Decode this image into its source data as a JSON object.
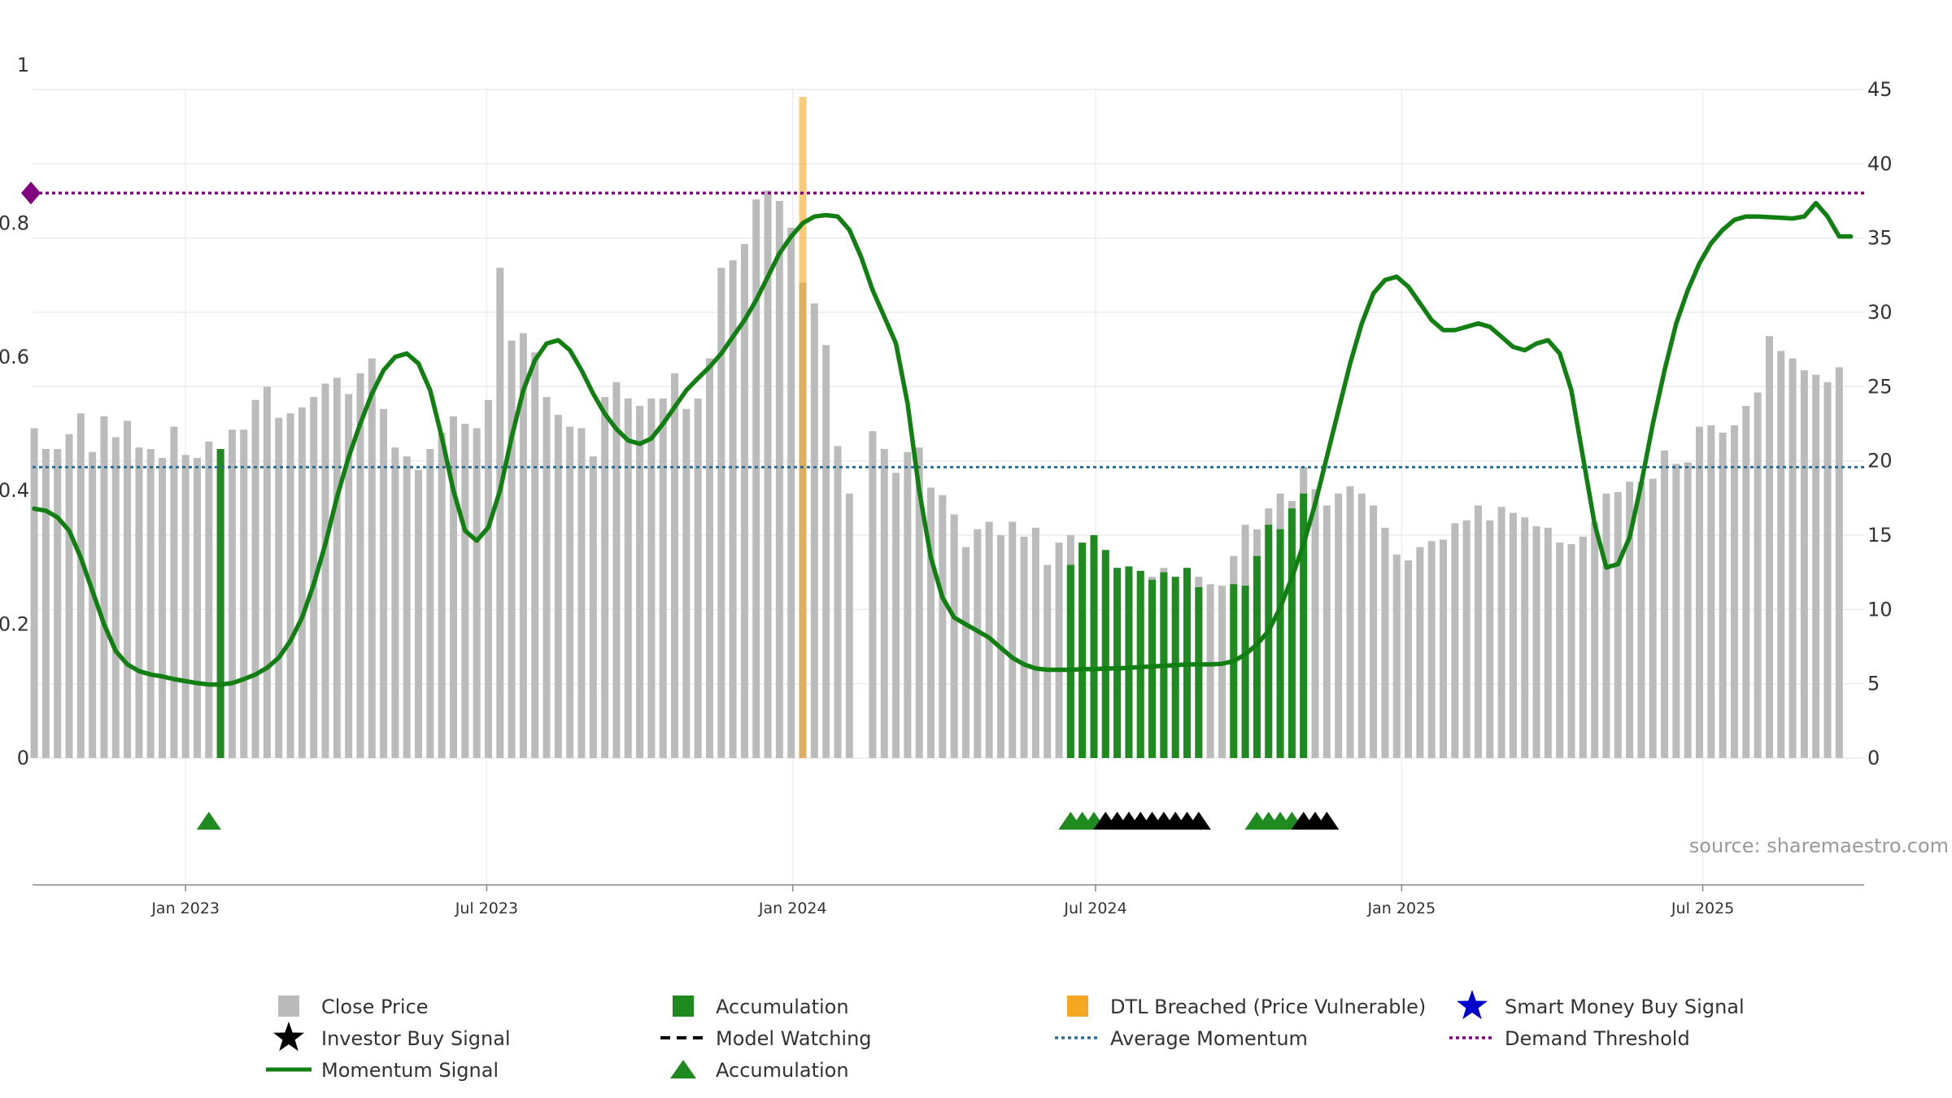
{
  "chart_data": {
    "type": "bar",
    "title": "",
    "source": "source: sharemaestro.com",
    "left_axis": {
      "ylim": [
        0,
        1
      ],
      "ticks": [
        "0",
        "0.2",
        "0.4",
        "0.6",
        "0.8",
        "1"
      ],
      "tick_values": [
        0,
        0.2,
        0.4,
        0.6,
        0.8,
        1
      ]
    },
    "right_axis": {
      "ylim": [
        0,
        45
      ],
      "ticks": [
        "0",
        "5",
        "10",
        "15",
        "20",
        "25",
        "30",
        "35",
        "40",
        "45"
      ],
      "tick_values": [
        0,
        5,
        10,
        15,
        20,
        25,
        30,
        35,
        40,
        45
      ]
    },
    "x_axis": {
      "start": "2022-10-01",
      "end": "2025-10-06",
      "ticks": [
        {
          "date": "2023-01-01",
          "label": "Jan 2023"
        },
        {
          "date": "2023-07-01",
          "label": "Jul 2023"
        },
        {
          "date": "2024-01-01",
          "label": "Jan 2024"
        },
        {
          "date": "2024-07-01",
          "label": "Jul 2024"
        },
        {
          "date": "2025-01-01",
          "label": "Jan 2025"
        },
        {
          "date": "2025-07-01",
          "label": "Jul 2025"
        }
      ]
    },
    "grid": true,
    "close_price": {
      "name": "Close Price",
      "start_date": "2022-10-02",
      "interval_days": 7,
      "color": "#bbbbbb",
      "values": [
        22.2,
        20.8,
        20.8,
        21.8,
        23.2,
        20.6,
        23.0,
        21.6,
        22.7,
        20.9,
        20.8,
        20.2,
        22.3,
        20.4,
        20.2,
        21.3,
        20.8,
        22.1,
        22.1,
        24.1,
        25.0,
        22.9,
        23.2,
        23.6,
        24.3,
        25.2,
        25.6,
        24.5,
        25.9,
        26.9,
        23.5,
        20.9,
        20.3,
        19.4,
        20.8,
        21.9,
        23.0,
        22.5,
        22.2,
        24.1,
        33.0,
        28.1,
        28.6,
        27.3,
        24.3,
        23.1,
        22.3,
        22.2,
        20.3,
        24.3,
        25.3,
        24.2,
        23.7,
        24.2,
        24.2,
        25.9,
        23.5,
        24.2,
        26.9,
        33.0,
        33.5,
        34.6,
        37.6,
        38.2,
        37.5,
        35.7,
        32.0,
        30.6,
        27.8,
        21.0,
        17.8,
        0,
        22.0,
        20.8,
        19.2,
        20.6,
        20.9,
        18.2,
        17.7,
        16.4,
        14.2,
        15.4,
        15.9,
        15.0,
        15.9,
        14.9,
        15.5,
        13.0,
        14.5,
        15.0,
        14.0,
        12.8,
        12.9,
        12.6,
        12.0,
        12.5,
        12.2,
        12.8,
        11.5,
        12.7,
        12.2,
        11.7,
        11.6,
        13.6,
        15.7,
        15.4,
        16.8,
        17.8,
        17.3,
        19.6,
        18.1,
        17.0,
        17.8,
        18.3,
        17.8,
        17.0,
        15.5,
        13.7,
        13.3,
        14.2,
        14.6,
        14.7,
        15.8,
        16.0,
        17.0,
        16.0,
        16.9,
        16.5,
        16.2,
        15.6,
        15.5,
        14.5,
        14.4,
        14.9,
        15.9,
        17.8,
        17.9,
        18.6,
        18.6,
        18.8,
        20.7,
        19.8,
        19.9,
        22.3,
        22.4,
        21.9,
        22.4,
        23.7,
        24.6,
        28.4,
        27.4,
        26.9,
        26.1,
        25.8,
        25.3,
        26.3
      ]
    },
    "accumulation_bars": {
      "name": "Accumulation",
      "color": "#1f8a1f",
      "items": [
        {
          "index": 16,
          "value": 20.8
        },
        {
          "index": 89,
          "value": 13.0
        },
        {
          "index": 90,
          "value": 14.5
        },
        {
          "index": 91,
          "value": 15.0
        },
        {
          "index": 92,
          "value": 14.0
        },
        {
          "index": 93,
          "value": 12.8
        },
        {
          "index": 94,
          "value": 12.9
        },
        {
          "index": 95,
          "value": 12.6
        },
        {
          "index": 96,
          "value": 12.0
        },
        {
          "index": 97,
          "value": 12.5
        },
        {
          "index": 98,
          "value": 12.2
        },
        {
          "index": 99,
          "value": 12.8
        },
        {
          "index": 100,
          "value": 11.5
        },
        {
          "index": 103,
          "value": 11.7
        },
        {
          "index": 104,
          "value": 11.6
        },
        {
          "index": 105,
          "value": 13.6
        },
        {
          "index": 106,
          "value": 15.7
        },
        {
          "index": 107,
          "value": 15.4
        },
        {
          "index": 108,
          "value": 16.8
        },
        {
          "index": 109,
          "value": 17.8
        }
      ]
    },
    "dtl_breached": {
      "name": "DTL Breached (Price Vulnerable)",
      "color": "#f5a623",
      "index": 66,
      "value": 44.5
    },
    "momentum": {
      "name": "Momentum Signal",
      "color": "#127f12",
      "axis": "left",
      "start_date": "2022-10-02",
      "interval_days": 7,
      "values": [
        0.373,
        0.37,
        0.36,
        0.34,
        0.3,
        0.25,
        0.2,
        0.16,
        0.14,
        0.13,
        0.125,
        0.122,
        0.118,
        0.115,
        0.112,
        0.11,
        0.11,
        0.112,
        0.118,
        0.125,
        0.135,
        0.15,
        0.175,
        0.21,
        0.26,
        0.32,
        0.39,
        0.45,
        0.5,
        0.545,
        0.58,
        0.6,
        0.605,
        0.59,
        0.55,
        0.48,
        0.4,
        0.34,
        0.325,
        0.345,
        0.4,
        0.48,
        0.55,
        0.595,
        0.62,
        0.625,
        0.61,
        0.58,
        0.545,
        0.515,
        0.492,
        0.475,
        0.47,
        0.478,
        0.5,
        0.525,
        0.55,
        0.568,
        0.585,
        0.605,
        0.63,
        0.655,
        0.685,
        0.72,
        0.755,
        0.78,
        0.8,
        0.81,
        0.812,
        0.81,
        0.79,
        0.75,
        0.7,
        0.66,
        0.62,
        0.53,
        0.4,
        0.3,
        0.24,
        0.21,
        0.2,
        0.19,
        0.18,
        0.165,
        0.15,
        0.14,
        0.134,
        0.132,
        0.132,
        0.132,
        0.133,
        0.133,
        0.134,
        0.134,
        0.135,
        0.136,
        0.137,
        0.138,
        0.139,
        0.14,
        0.14,
        0.14,
        0.141,
        0.145,
        0.155,
        0.17,
        0.19,
        0.225,
        0.27,
        0.32,
        0.38,
        0.45,
        0.52,
        0.59,
        0.65,
        0.695,
        0.715,
        0.72,
        0.705,
        0.68,
        0.655,
        0.64,
        0.64,
        0.645,
        0.65,
        0.645,
        0.63,
        0.615,
        0.61,
        0.62,
        0.625,
        0.605,
        0.55,
        0.45,
        0.35,
        0.285,
        0.29,
        0.33,
        0.41,
        0.5,
        0.58,
        0.65,
        0.7,
        0.74,
        0.77,
        0.79,
        0.805,
        0.81,
        0.81,
        0.809,
        0.808,
        0.807,
        0.81,
        0.83,
        0.81,
        0.78,
        0.78
      ]
    },
    "average_momentum": {
      "name": "Average Momentum",
      "value": 0.435,
      "color": "#2a6f97"
    },
    "demand_threshold": {
      "name": "Demand Threshold",
      "value": 0.845,
      "color": "#800080"
    },
    "accumulation_markers": {
      "name": "Accumulation",
      "color": "#1f8a1f",
      "dates": [
        "2023-01-15",
        "2024-06-16",
        "2024-06-23",
        "2024-06-30",
        "2024-10-06",
        "2024-10-13",
        "2024-10-20",
        "2024-10-27"
      ]
    },
    "investor_buy_markers": {
      "name": "Investor Buy Signal",
      "color": "#000000",
      "dates": [
        "2024-07-07",
        "2024-07-14",
        "2024-07-21",
        "2024-07-28",
        "2024-08-04",
        "2024-08-11",
        "2024-08-18",
        "2024-08-25",
        "2024-09-01",
        "2024-11-03",
        "2024-11-10",
        "2024-11-17"
      ]
    },
    "legend": {
      "placement": "bottom",
      "items": [
        {
          "label": "Close Price",
          "symbol": "square",
          "color": "#bbbbbb"
        },
        {
          "label": "Accumulation",
          "symbol": "square",
          "color": "#1f8a1f"
        },
        {
          "label": "DTL Breached (Price Vulnerable)",
          "symbol": "square",
          "color": "#f5a623"
        },
        {
          "label": "Smart Money Buy Signal",
          "symbol": "star",
          "color": "#0000cc"
        },
        {
          "label": "Investor Buy Signal",
          "symbol": "star",
          "color": "#000000"
        },
        {
          "label": "Model Watching",
          "symbol": "dashed-line",
          "color": "#000000"
        },
        {
          "label": "Average Momentum",
          "symbol": "dotted-line",
          "color": "#2a6f97"
        },
        {
          "label": "Demand Threshold",
          "symbol": "dotted-line",
          "color": "#800080"
        },
        {
          "label": "Momentum Signal",
          "symbol": "line",
          "color": "#127f12"
        },
        {
          "label": "Accumulation",
          "symbol": "triangle",
          "color": "#1f8a1f"
        }
      ]
    }
  }
}
